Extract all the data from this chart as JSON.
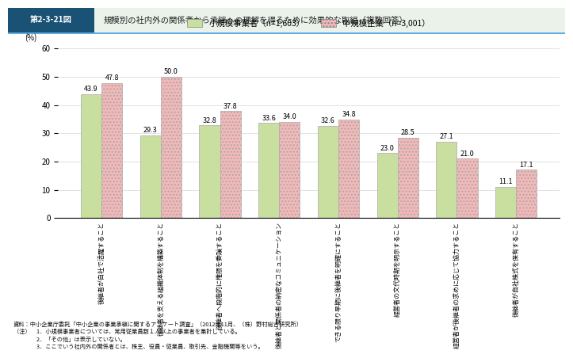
{
  "header_label": "第2-3-21図",
  "header_text": "規模別の社内外の関係者から承継への理解を得るために効果的な取組（複数回答）",
  "legend1": "小規模事業者（n=1,603）",
  "legend2": "中規模企業（n=3,001）",
  "ylabel": "(%)",
  "ylim": [
    0,
    60
  ],
  "yticks": [
    0,
    10,
    20,
    30,
    40,
    50,
    60
  ],
  "categories": [
    "後継者が自社で活躍すること",
    "後継者を支える組織体制を構築すること",
    "後継者へ段階的に権限を委譲すること",
    "後継者と関係者の納密なコミュニケーション",
    "できる限り早期に後継者を明確にすること",
    "経営者の文代時期を明示すること",
    "経営者が後継者の求めに応じて協力すること",
    "後継者が自社株式を保有すること"
  ],
  "small_values": [
    43.9,
    29.3,
    32.8,
    33.6,
    32.6,
    23.0,
    27.1,
    11.1
  ],
  "medium_values": [
    47.8,
    50.0,
    37.8,
    34.0,
    34.8,
    28.5,
    21.0,
    17.1
  ],
  "small_color": "#c8dfa0",
  "medium_color": "#f5b8b8",
  "bar_width": 0.35,
  "header_dark_bg": "#1a5276",
  "header_light_bg": "#e8f0e0",
  "header_divider": "#5dade2",
  "note1": "資料：中小企業庁委託「中小企業の事業承継に関するアンケート調査」（2012年11月、（株）野村総合研究所）",
  "note2": "（注）　1．小規模事業者については、常用従業員数１人以上の事業者を集計している。",
  "note3": "　　　　2．「その他」は表示していない。",
  "note4": "　　　　3．ここでいう社内外の関係者とは、株主、役員・従業員、取引先、金融機関等をいう。"
}
